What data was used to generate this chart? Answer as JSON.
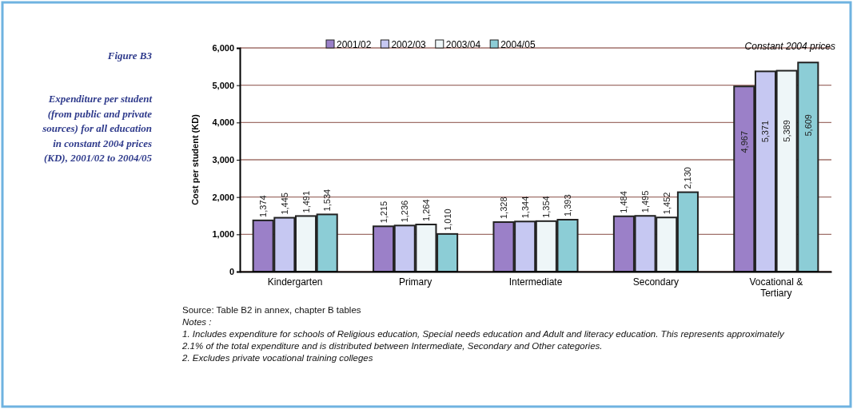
{
  "chart_data": {
    "type": "bar",
    "title": "Figure B3",
    "subtitle": "Expenditure per student (from public and private sources) for all education in constant 2004 prices (KD), 2001/02 to 2004/05",
    "ylabel": "Cost per student (KD)",
    "categories": [
      "Kindergarten",
      "Primary",
      "Intermediate",
      "Secondary",
      "Vocational & Tertiary"
    ],
    "series": [
      {
        "name": "2001/02",
        "color": "#9b80c8",
        "values": [
          1374,
          1215,
          1328,
          1484,
          4967
        ],
        "value_labels": [
          "1,374",
          "1,215",
          "1,328",
          "1,484",
          "4,967"
        ]
      },
      {
        "name": "2002/03",
        "color": "#c6c8f2",
        "values": [
          1445,
          1236,
          1344,
          1495,
          5371
        ],
        "value_labels": [
          "1,445",
          "1,236",
          "1,344",
          "1,495",
          "5,371"
        ]
      },
      {
        "name": "2003/04",
        "color": "#eef6f8",
        "values": [
          1491,
          1264,
          1354,
          1452,
          5389
        ],
        "value_labels": [
          "1,491",
          "1,264",
          "1,354",
          "1,452",
          "5,389"
        ]
      },
      {
        "name": "2004/05",
        "color": "#8ccdd6",
        "values": [
          1534,
          1010,
          1393,
          2130,
          5609
        ],
        "value_labels": [
          "1,534",
          "1,010",
          "1,393",
          "2,130",
          "5,609"
        ]
      }
    ],
    "ylim": [
      0,
      6000
    ],
    "yticks": [
      0,
      {
        "value": 1000,
        "label": "1,000"
      },
      {
        "value": 2000,
        "label": "2,000"
      },
      {
        "value": 3000,
        "label": "3,000"
      },
      {
        "value": 4000,
        "label": "4,000"
      },
      {
        "value": 5000,
        "label": "5,000"
      },
      {
        "value": 6000,
        "label": "6,000"
      }
    ],
    "grid": "y",
    "legend": "top",
    "annotations": [
      "Constant 2004 prices",
      "Source: Table B2 in annex, chapter B tables",
      "Notes :",
      "1. Includes expenditure for schools of Religious education, Special needs education and Adult and literacy education. This represents approximately 2.1% of the total expenditure and is distributed between Intermediate, Secondary and Other categories.",
      "2. Excludes private vocational training colleges"
    ]
  }
}
